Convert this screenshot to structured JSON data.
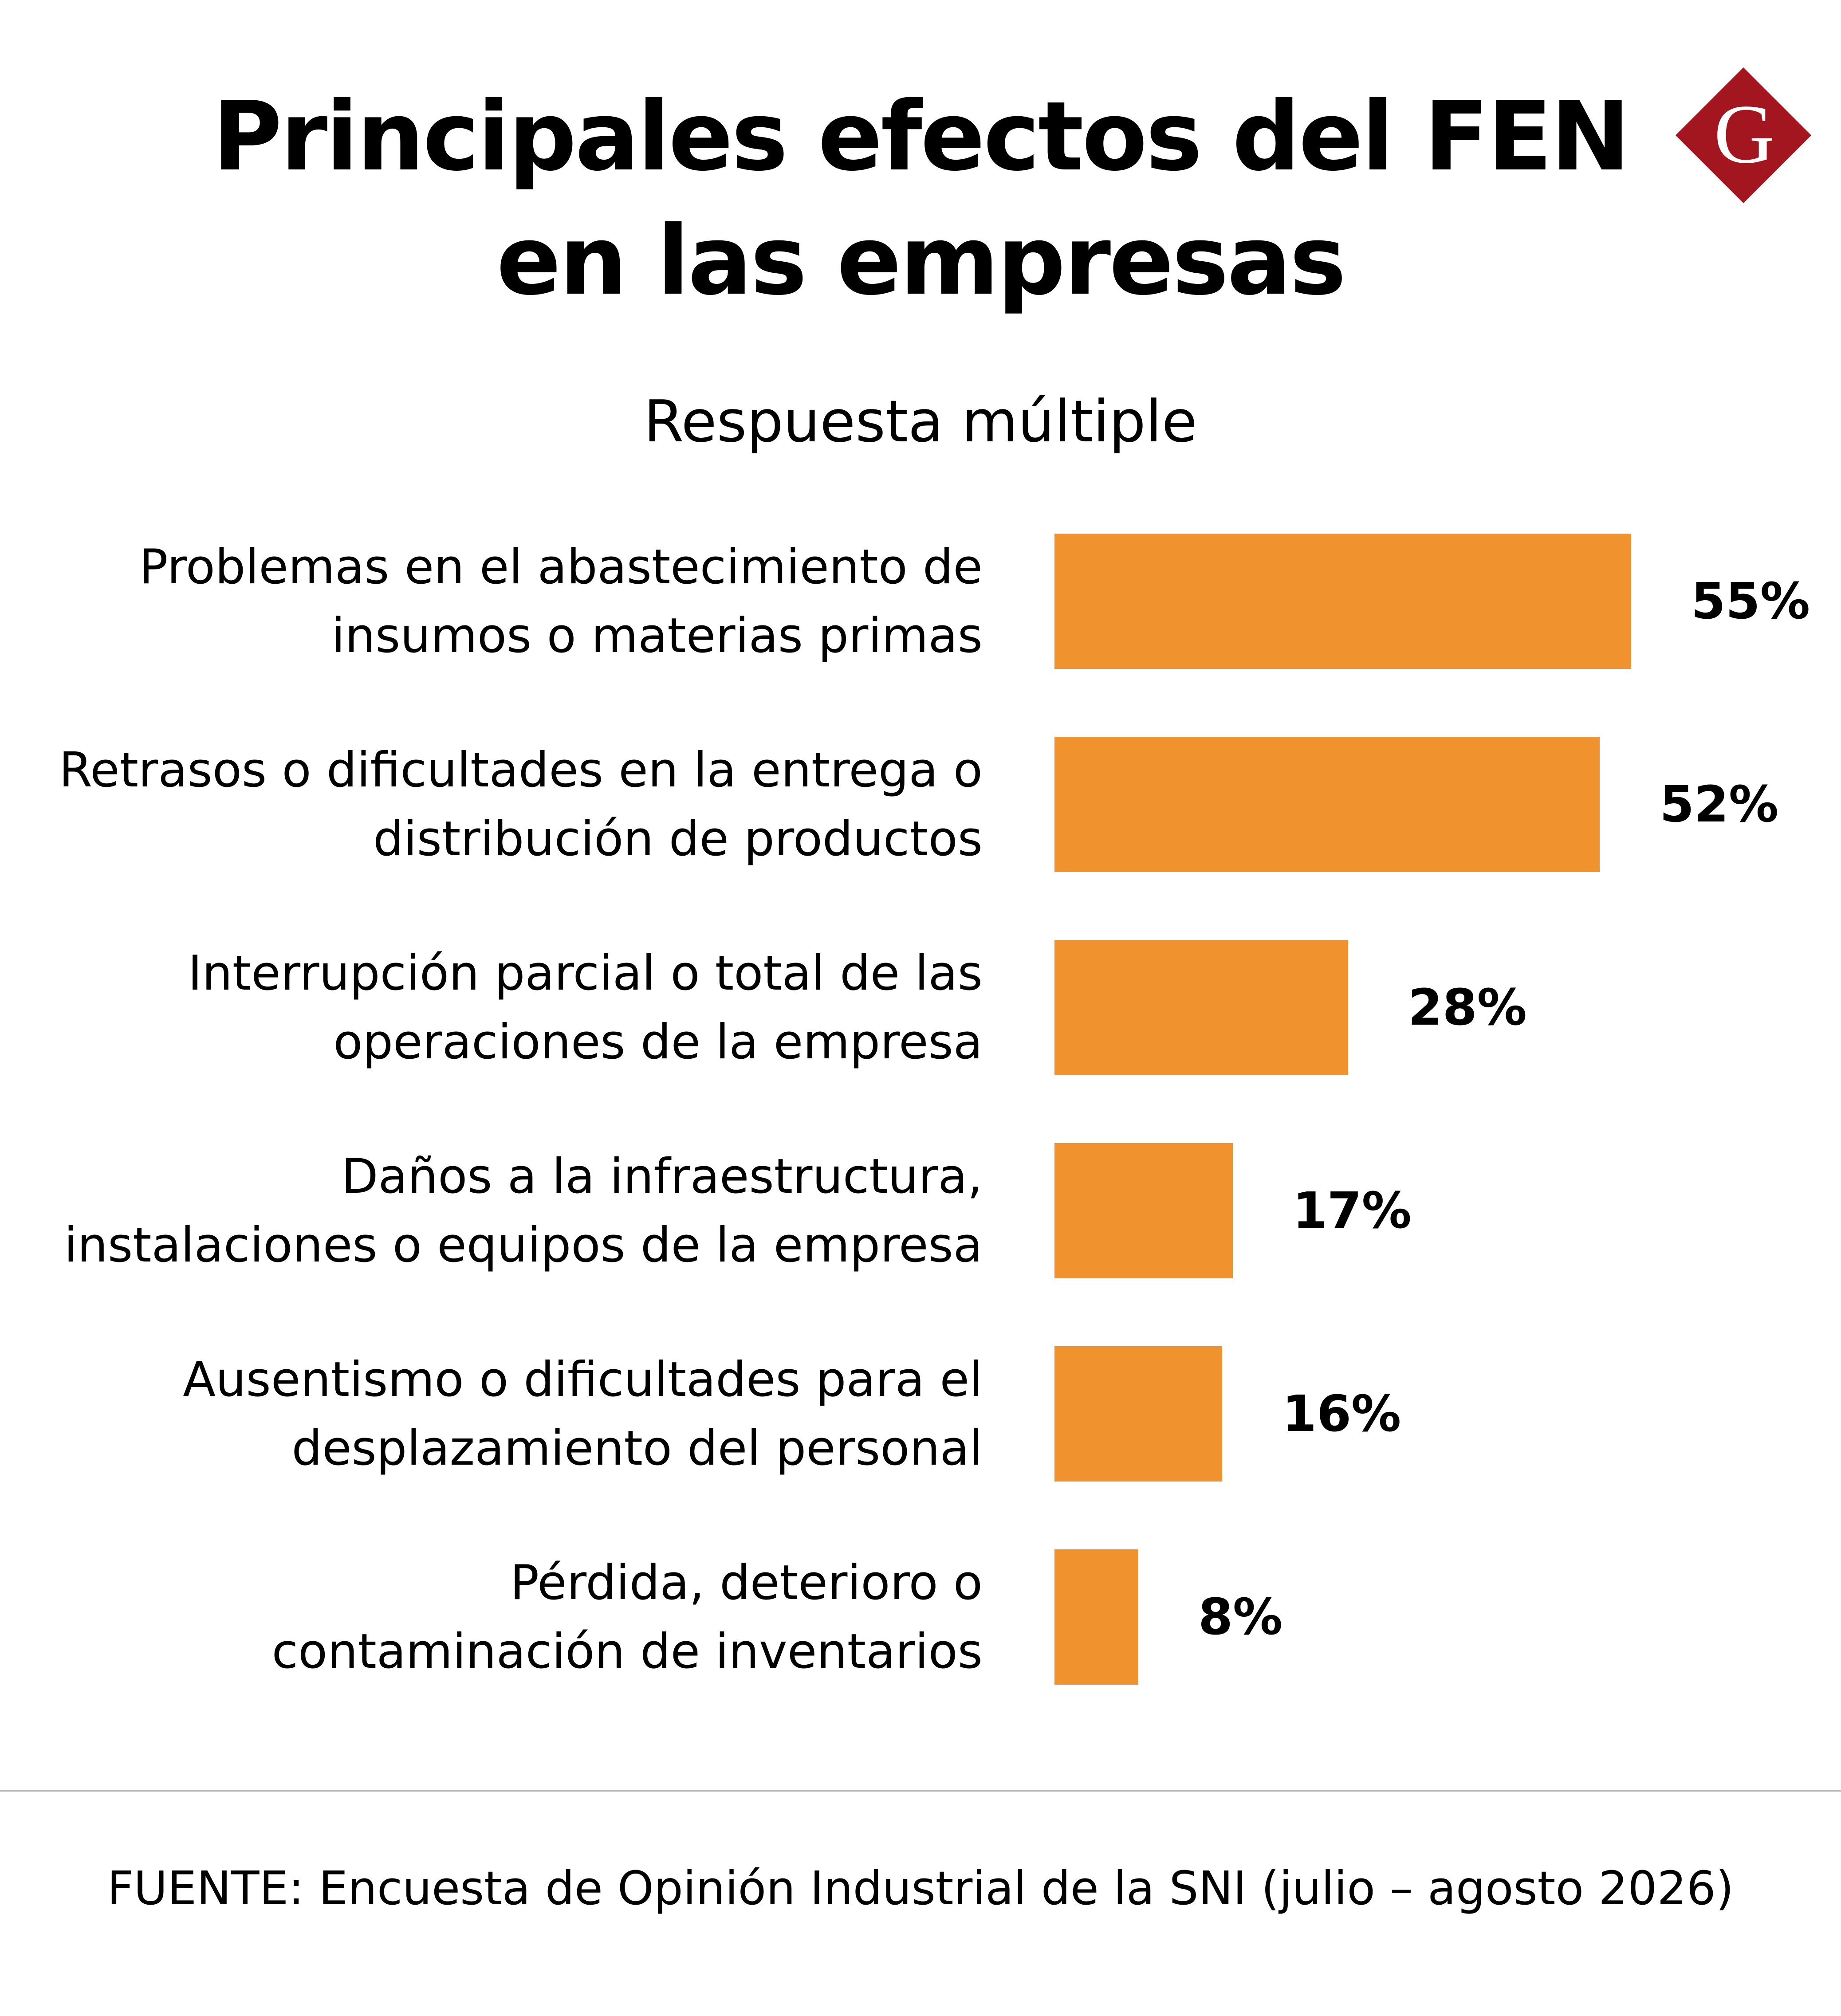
{
  "title": {
    "line1": "Principales efectos del FEN",
    "line2": "en las empresas"
  },
  "logo": {
    "letter": "G",
    "icon": "diamond-g-logo",
    "color": "#a3161f"
  },
  "chart_data": {
    "type": "bar",
    "orientation": "horizontal",
    "subtitle": "Respuesta múltiple",
    "unit": "%",
    "bar_color": "#f0922d",
    "categories": [
      [
        "Problemas en el abastecimiento de",
        "insumos o materias primas"
      ],
      [
        "Retrasos o dificultades en la entrega o",
        "distribución de productos"
      ],
      [
        "Interrupción parcial o total de las",
        "operaciones de la empresa"
      ],
      [
        "Daños a la infraestructura,",
        "instalaciones o equipos de la empresa"
      ],
      [
        "Ausentismo o dificultades para el",
        "desplazamiento del personal"
      ],
      [
        "Pérdida, deterioro o",
        "contaminación de inventarios"
      ]
    ],
    "values": [
      55,
      52,
      28,
      17,
      16,
      8
    ],
    "value_labels": [
      "55%",
      "52%",
      "28%",
      "17%",
      "16%",
      "8%"
    ]
  },
  "footer": {
    "source": "FUENTE: Encuesta de Opinión Industrial de la SNI (julio – agosto 2026)"
  }
}
